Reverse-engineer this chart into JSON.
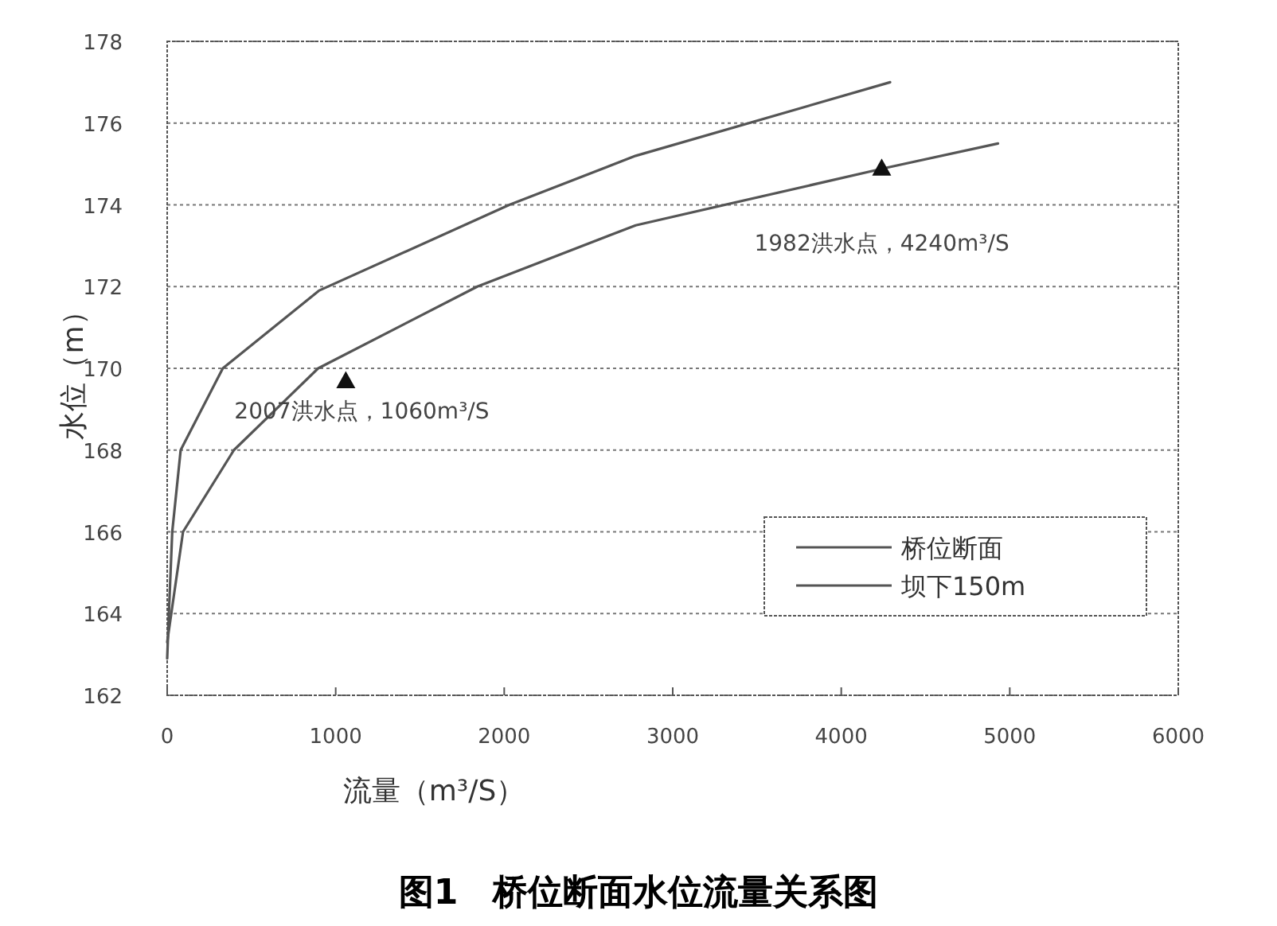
{
  "chart_data": {
    "type": "line",
    "title": "图1　桥位断面水位流量关系图",
    "xlabel": "流量（m³/S）",
    "ylabel": "水位（m）",
    "xlim": [
      0,
      6000
    ],
    "xticks": [
      0,
      1000,
      2000,
      3000,
      4000,
      5000,
      6000
    ],
    "ylim": [
      162,
      178
    ],
    "yticks": [
      162,
      164,
      166,
      168,
      170,
      172,
      174,
      176,
      178
    ],
    "grid": "y",
    "legend": "bottom right",
    "marker": "none",
    "line_style": "solid",
    "series": [
      {
        "name": "桥位断面",
        "color": "#555555",
        "x": [
          0,
          10,
          30,
          80,
          330,
          900,
          2030,
          2780,
          4290
        ],
        "values": [
          162.9,
          164,
          166,
          168,
          170,
          171.9,
          174,
          175.2,
          177
        ]
      },
      {
        "name": "坝下150m",
        "color": "#555555",
        "x": [
          0,
          94,
          396,
          896,
          1840,
          2780,
          4260,
          4930
        ],
        "values": [
          163.3,
          166,
          168,
          170,
          172,
          173.5,
          174.9,
          175.5
        ]
      },
      {
        "type": "scatter",
        "marker": "triangle",
        "color": "#111111",
        "x": [
          1060,
          4240
        ],
        "values": [
          169.7,
          174.9
        ]
      }
    ],
    "annotations": [
      {
        "text": "2007洪水点，1060m³/S",
        "x": 1060,
        "y": 169.7
      },
      {
        "text": "1982洪水点，4240m³/S",
        "x": 4240,
        "y": 174.9
      }
    ]
  }
}
